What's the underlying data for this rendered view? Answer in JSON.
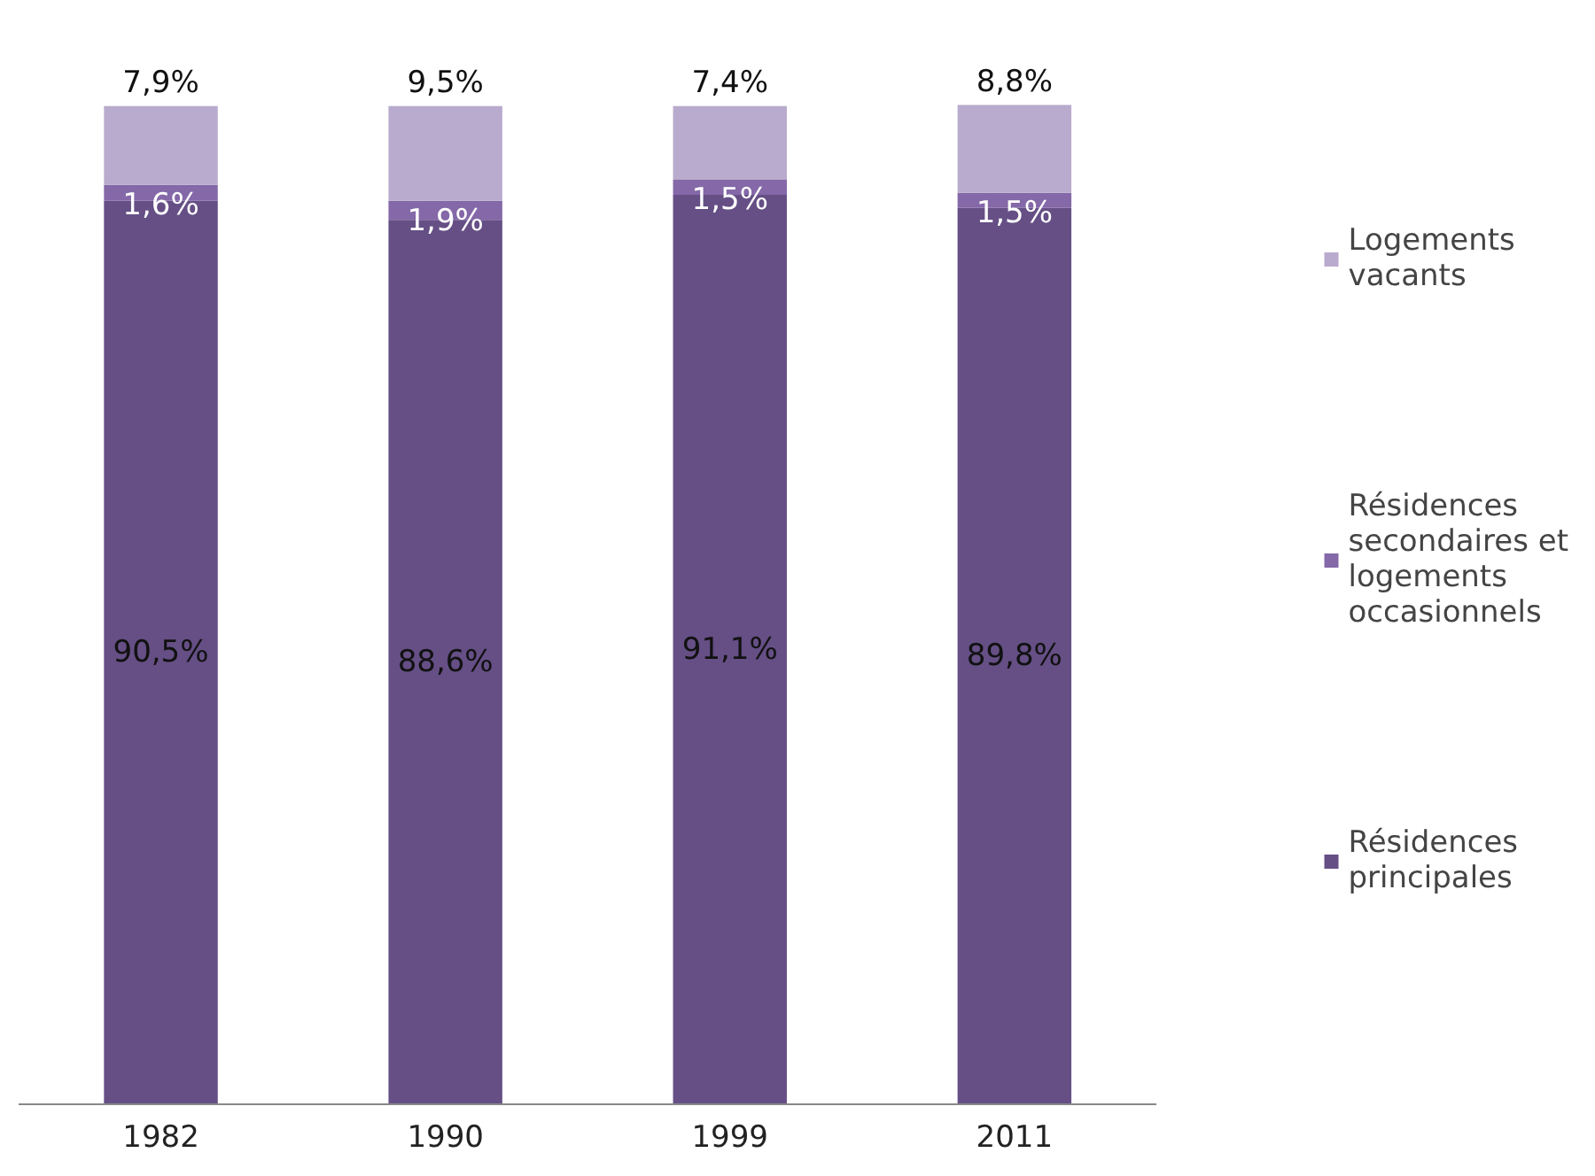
{
  "chart_data": {
    "type": "bar",
    "stacked": true,
    "categories": [
      "1982",
      "1990",
      "1999",
      "2011"
    ],
    "series": [
      {
        "name": "Résidences principales",
        "color": "#654f85",
        "values": [
          90.5,
          88.6,
          91.1,
          89.8
        ],
        "value_labels": [
          "90,5%",
          "88,6%",
          "91,1%",
          "89,8%"
        ]
      },
      {
        "name": "Résidences secondaires et logements occasionnels",
        "color": "#8468a8",
        "values": [
          1.6,
          1.9,
          1.5,
          1.5
        ],
        "value_labels": [
          "1,6%",
          "1,9%",
          "1,5%",
          "1,5%"
        ]
      },
      {
        "name": "Logements vacants",
        "color": "#b9abcd",
        "values": [
          7.9,
          9.5,
          7.4,
          8.8
        ],
        "value_labels": [
          "7,9%",
          "9,5%",
          "7,4%",
          "8,8%"
        ]
      }
    ],
    "legend": "right"
  }
}
